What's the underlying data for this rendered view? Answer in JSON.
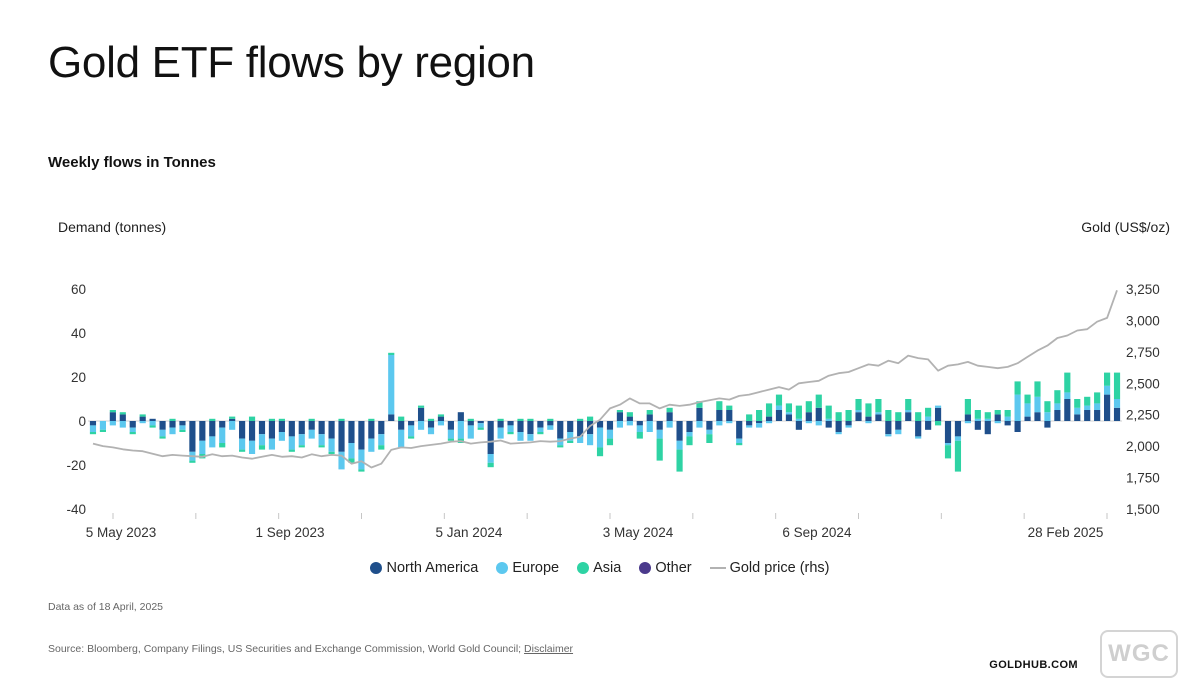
{
  "header": {
    "title": "Gold ETF flows by region",
    "subtitle": "Weekly flows in Tonnes"
  },
  "axes": {
    "left_title": "Demand (tonnes)",
    "right_title": "Gold (US$/oz)"
  },
  "legend": [
    {
      "label": "North America",
      "color": "#1f4f8b"
    },
    {
      "label": "Europe",
      "color": "#5cc8ef"
    },
    {
      "label": "Asia",
      "color": "#2ed3a4"
    },
    {
      "label": "Other",
      "color": "#4b3a8c"
    },
    {
      "label": "Gold price (rhs)",
      "color": "#b2b2b2"
    }
  ],
  "footer": {
    "date_note": "Data as of 18 April, 2025",
    "source_prefix": "Source: Bloomberg, Company Filings, US Securities and Exchange Commission, World Gold Council;",
    "disclaimer": "Disclaimer",
    "brand": "GOLDHUB.COM",
    "badge": "WGC"
  },
  "chart_data": {
    "type": "bar",
    "stacked": true,
    "x_tick_labels": [
      "5 May 2023",
      "1 Sep 2023",
      "5 Jan 2024",
      "3 May 2024",
      "6 Sep 2024",
      "28 Feb 2025"
    ],
    "y_left": {
      "ticks": [
        "60",
        "40",
        "20",
        "0",
        "-20",
        "-40"
      ],
      "ylim": [
        -40,
        60
      ]
    },
    "y_right": {
      "ticks": [
        "3,250",
        "3,000",
        "2,750",
        "2,500",
        "2,250",
        "2,000",
        "1,750",
        "1,500"
      ],
      "ylim": [
        1500,
        3250
      ]
    },
    "grid": false,
    "legend_position": "bottom",
    "weeks": 104,
    "series": [
      {
        "name": "North America",
        "color": "#1f4f8b",
        "values": [
          -2,
          0,
          4,
          3,
          -3,
          2,
          1,
          -4,
          -3,
          -2,
          -14,
          -9,
          -7,
          -3,
          1,
          -8,
          -9,
          -6,
          -8,
          -5,
          -7,
          -6,
          -4,
          -6,
          -8,
          -14,
          -10,
          -13,
          -8,
          -6,
          3,
          -4,
          -2,
          6,
          -3,
          2,
          -4,
          4,
          -2,
          -1,
          -15,
          -3,
          -2,
          -5,
          -6,
          -3,
          -2,
          -8,
          -5,
          -7,
          -6,
          -3,
          -4,
          4,
          2,
          -2,
          3,
          -4,
          4,
          -9,
          -5,
          6,
          -4,
          5,
          5,
          -8,
          -2,
          -1,
          2,
          5,
          3,
          -4,
          4,
          6,
          -3,
          -5,
          -2,
          4,
          2,
          3,
          -6,
          -4,
          4,
          -7,
          -4,
          6,
          -10,
          -7,
          3,
          -4,
          -6,
          3,
          -2,
          -5,
          2,
          4,
          -3,
          5,
          10,
          3,
          5,
          5,
          12,
          6
        ]
      },
      {
        "name": "Europe",
        "color": "#5cc8ef",
        "values": [
          -3,
          -4,
          -2,
          -3,
          -2,
          -1,
          -2,
          -3,
          -3,
          -2,
          -4,
          -6,
          -5,
          -7,
          -4,
          -5,
          -6,
          -5,
          -5,
          -4,
          -6,
          -5,
          -4,
          -5,
          -6,
          -8,
          -7,
          -9,
          -6,
          -5,
          27,
          -8,
          -5,
          -4,
          -3,
          -2,
          -4,
          -8,
          -6,
          -2,
          -4,
          -5,
          -3,
          -4,
          -3,
          -2,
          -2,
          -3,
          -4,
          -3,
          -5,
          -9,
          -4,
          -3,
          -2,
          -3,
          -5,
          -4,
          -3,
          -4,
          -2,
          -3,
          -2,
          -2,
          -1,
          -2,
          -1,
          -2,
          -1,
          2,
          1,
          1,
          -1,
          -2,
          1,
          -1,
          -1,
          1,
          -1,
          1,
          -1,
          -2,
          1,
          -1,
          2,
          1,
          -1,
          -2,
          -1,
          1,
          1,
          -1,
          2,
          12,
          6,
          7,
          4,
          3,
          3,
          3,
          2,
          3,
          4,
          4
        ]
      },
      {
        "name": "Asia",
        "color": "#2ed3a4",
        "values": [
          -1,
          -1,
          1,
          1,
          -1,
          1,
          -1,
          -1,
          1,
          -1,
          -1,
          -2,
          1,
          -2,
          1,
          -1,
          2,
          -2,
          1,
          1,
          -1,
          -1,
          1,
          -1,
          -1,
          1,
          -2,
          -1,
          1,
          -2,
          1,
          2,
          -1,
          1,
          1,
          1,
          -1,
          -2,
          1,
          -1,
          -2,
          1,
          -1,
          1,
          1,
          -1,
          1,
          -1,
          -1,
          1,
          2,
          -4,
          -3,
          1,
          2,
          -3,
          2,
          -10,
          2,
          -10,
          -4,
          3,
          -4,
          4,
          2,
          -1,
          3,
          5,
          6,
          5,
          4,
          6,
          5,
          6,
          6,
          4,
          5,
          5,
          6,
          6,
          5,
          4,
          5,
          4,
          4,
          -2,
          -6,
          -14,
          7,
          4,
          3,
          2,
          3,
          6,
          4,
          7,
          5,
          6,
          9,
          4,
          4,
          5,
          6,
          12
        ]
      },
      {
        "name": "Other",
        "color": "#4b3a8c",
        "values": [
          0,
          0,
          0,
          0,
          0,
          0,
          0,
          0,
          0,
          0,
          0,
          0,
          0,
          0,
          0,
          0,
          0,
          0,
          0,
          0,
          0,
          0,
          0,
          0,
          0,
          0,
          0,
          0,
          0,
          0,
          0,
          0,
          0,
          0,
          0,
          0,
          0,
          0,
          0,
          0,
          0,
          0,
          0,
          0,
          0,
          0,
          0,
          0,
          0,
          0,
          0,
          0,
          0,
          0,
          0,
          0,
          0,
          0,
          0,
          0,
          0,
          0,
          0,
          0,
          0,
          0,
          0,
          0,
          0,
          0,
          0,
          0,
          0,
          0,
          0,
          0,
          0,
          0,
          0,
          0,
          0,
          0,
          0,
          0,
          0,
          0,
          0,
          0,
          0,
          0,
          0,
          0,
          0,
          0,
          0,
          0,
          0,
          0,
          0,
          0,
          0,
          0,
          0,
          0
        ]
      },
      {
        "name": "Gold price (rhs)",
        "type": "line",
        "axis": "right",
        "color": "#b2b2b2",
        "values": [
          2020,
          2000,
          1990,
          1975,
          1965,
          1960,
          1940,
          1920,
          1930,
          1925,
          1920,
          1915,
          1935,
          1920,
          1925,
          1910,
          1900,
          1915,
          1930,
          1915,
          1920,
          1910,
          1935,
          1920,
          1930,
          1925,
          1860,
          1880,
          1830,
          1860,
          1970,
          1990,
          1985,
          2000,
          2010,
          2020,
          2035,
          2040,
          2020,
          2030,
          2035,
          2045,
          2020,
          2025,
          2030,
          2040,
          2035,
          2040,
          2060,
          2075,
          2160,
          2210,
          2300,
          2330,
          2380,
          2340,
          2340,
          2300,
          2330,
          2320,
          2330,
          2350,
          2365,
          2380,
          2370,
          2400,
          2410,
          2430,
          2450,
          2470,
          2450,
          2500,
          2510,
          2520,
          2560,
          2580,
          2590,
          2620,
          2650,
          2640,
          2680,
          2660,
          2720,
          2700,
          2690,
          2600,
          2640,
          2650,
          2670,
          2640,
          2630,
          2620,
          2630,
          2660,
          2710,
          2760,
          2800,
          2860,
          2880,
          2920,
          2930,
          2990,
          3020,
          3240
        ]
      }
    ]
  }
}
